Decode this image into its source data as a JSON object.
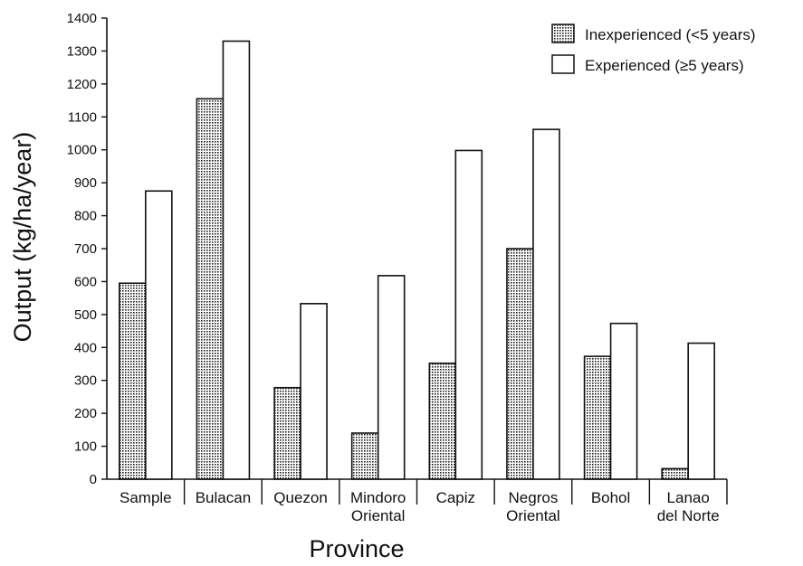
{
  "chart_data": {
    "type": "bar",
    "title": "",
    "xlabel": "Province",
    "ylabel": "Output (kg/ha/year)",
    "ylim": [
      0,
      1400
    ],
    "yticks": [
      "0",
      "100",
      "200",
      "300",
      "400",
      "500",
      "600",
      "700",
      "800",
      "900",
      "1000",
      "1100",
      "1200",
      "1300",
      "1400"
    ],
    "grid": false,
    "legend_position": "top-right",
    "categories": [
      [
        "Sample"
      ],
      [
        "Bulacan"
      ],
      [
        "Quezon"
      ],
      [
        "Mindoro",
        "Oriental"
      ],
      [
        "Capiz"
      ],
      [
        "Negros",
        "Oriental"
      ],
      [
        "Bohol"
      ],
      [
        "Lanao",
        "del Norte"
      ]
    ],
    "series": [
      {
        "name": "Inexperienced (<5 years)",
        "pattern": "stippled",
        "values": [
          595,
          1155,
          278,
          140,
          352,
          700,
          373,
          32
        ]
      },
      {
        "name": "Experienced (≥5 years)",
        "pattern": "open",
        "values": [
          875,
          1330,
          533,
          618,
          998,
          1062,
          473,
          413
        ]
      }
    ]
  }
}
